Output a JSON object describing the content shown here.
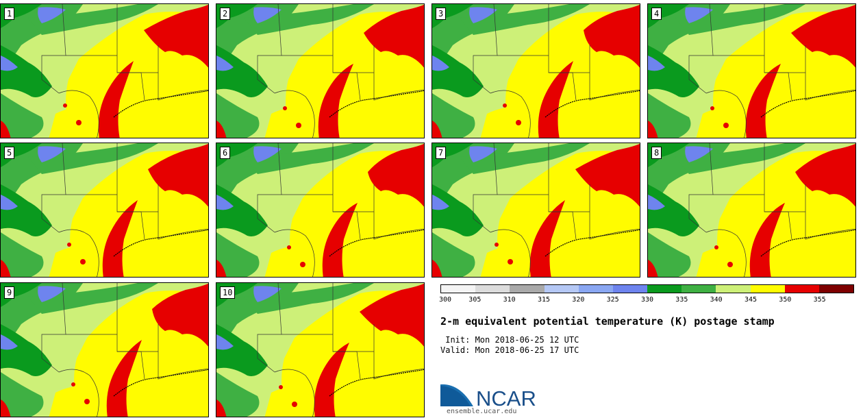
{
  "panels": [
    {
      "label": "1"
    },
    {
      "label": "2"
    },
    {
      "label": "3"
    },
    {
      "label": "4"
    },
    {
      "label": "5"
    },
    {
      "label": "6"
    },
    {
      "label": "7"
    },
    {
      "label": "8"
    },
    {
      "label": "9"
    },
    {
      "label": "10"
    }
  ],
  "colorbar": {
    "ticks": [
      "300",
      "305",
      "310",
      "315",
      "320",
      "325",
      "330",
      "335",
      "340",
      "345",
      "350",
      "355"
    ],
    "colors": [
      "#f4f4f4",
      "#dcdcdc",
      "#a9a9a9",
      "#b5c8f5",
      "#8aa7f2",
      "#6e84ee",
      "#0a9a1e",
      "#3fb043",
      "#cdf078",
      "#fffc00",
      "#e60000",
      "#7e0000"
    ]
  },
  "title": "2-m equivalent potential temperature (K) postage stamp",
  "init": " Init: Mon 2018-06-25 12 UTC",
  "valid": "Valid: Mon 2018-06-25 17 UTC",
  "logo": {
    "text": "NCAR",
    "url": "ensemble.ucar.edu",
    "color": "#1a4f8a"
  },
  "map_colors": {
    "land_light": "#cdf078",
    "green_dark": "#0a9a1e",
    "green_mid": "#3fb043",
    "yellow": "#fffc00",
    "red": "#e60000",
    "blue": "#6e84ee"
  }
}
